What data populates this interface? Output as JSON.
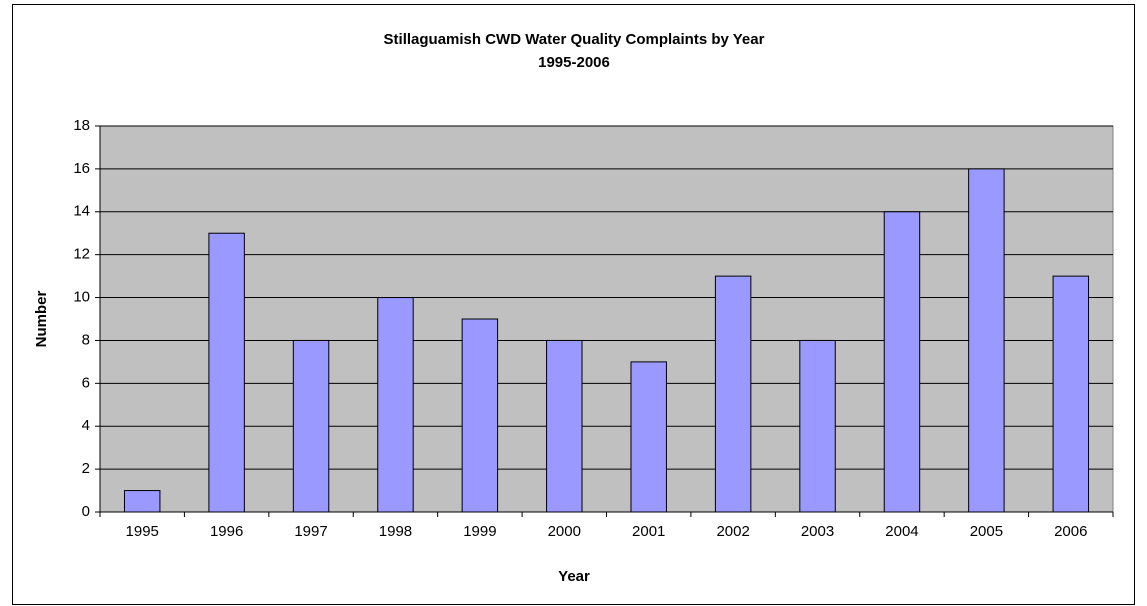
{
  "chart_data": {
    "type": "bar",
    "title": "Stillaguamish CWD Water Quality Complaints by Year",
    "subtitle": "1995-2006",
    "x_label": "Year",
    "y_label": "Number",
    "categories": [
      "1995",
      "1996",
      "1997",
      "1998",
      "1999",
      "2000",
      "2001",
      "2002",
      "2003",
      "2004",
      "2005",
      "2006"
    ],
    "values": [
      1,
      13,
      8,
      10,
      9,
      8,
      7,
      11,
      8,
      14,
      16,
      11
    ],
    "color": "#9999ff",
    "ylim": [
      0,
      18
    ],
    "yticks": [
      0,
      2,
      4,
      6,
      8,
      10,
      12,
      14,
      16,
      18
    ],
    "grid": true
  }
}
